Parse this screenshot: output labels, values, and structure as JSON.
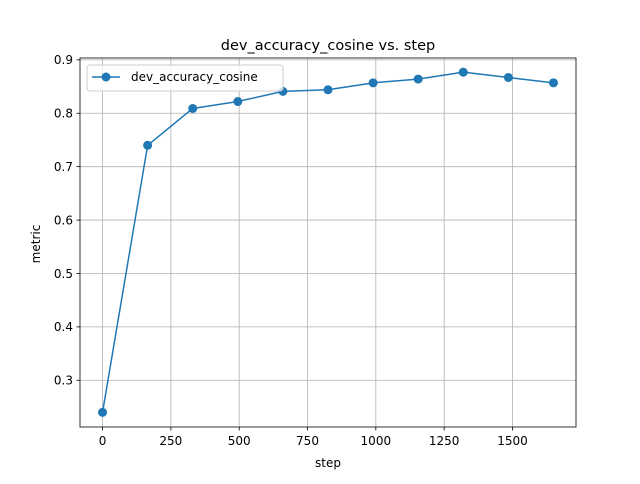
{
  "chart_data": {
    "type": "line",
    "title": "dev_accuracy_cosine vs. step",
    "xlabel": "step",
    "ylabel": "metric",
    "xlim": [
      -82.5,
      1732.5
    ],
    "ylim": [
      0.2125,
      0.9035
    ],
    "xticks": [
      0,
      250,
      500,
      750,
      1000,
      1250,
      1500
    ],
    "xtick_labels": [
      "0",
      "250",
      "500",
      "750",
      "1000",
      "1250",
      "1500"
    ],
    "yticks": [
      0.3,
      0.4,
      0.5,
      0.6,
      0.7,
      0.8,
      0.9
    ],
    "ytick_labels": [
      "0.3",
      "0.4",
      "0.5",
      "0.6",
      "0.7",
      "0.8",
      "0.9"
    ],
    "grid": true,
    "legend_position": "upper-left",
    "x": [
      0,
      165,
      330,
      495,
      660,
      825,
      990,
      1155,
      1320,
      1485,
      1650
    ],
    "series": [
      {
        "name": "dev_accuracy_cosine",
        "color": "#1f77b4",
        "marker": "circle",
        "values": [
          0.24,
          0.74,
          0.809,
          0.822,
          0.841,
          0.844,
          0.857,
          0.864,
          0.877,
          0.867,
          0.857
        ]
      }
    ]
  }
}
